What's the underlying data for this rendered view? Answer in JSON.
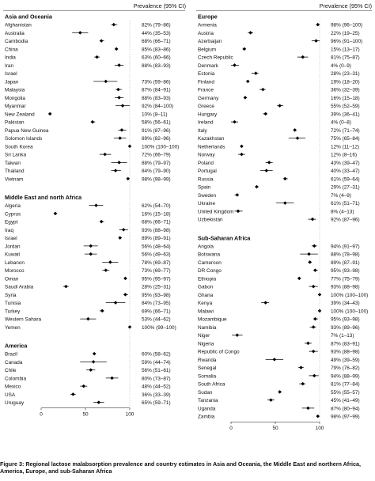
{
  "chart_data": {
    "type": "forest",
    "column_header": "Prevalence (95% CI)",
    "xlim": [
      0,
      100
    ],
    "x_ticks": [
      0,
      50,
      100
    ],
    "panels": [
      {
        "groups": [
          {
            "name": "Asia and Oceania",
            "rows": [
              {
                "country": "Afghanistan",
                "label": "82% (79–86)",
                "est": 82,
                "lo": 79,
                "hi": 86
              },
              {
                "country": "Australia",
                "label": "44% (35–53)",
                "est": 44,
                "lo": 35,
                "hi": 53
              },
              {
                "country": "Cambodia",
                "label": "68% (66–71)",
                "est": 68,
                "lo": 66,
                "hi": 71
              },
              {
                "country": "China",
                "label": "85% (83–86)",
                "est": 85,
                "lo": 83,
                "hi": 86
              },
              {
                "country": "India",
                "label": "63% (60–66)",
                "est": 63,
                "lo": 60,
                "hi": 66
              },
              {
                "country": "Iran",
                "label": "88% (83–93)",
                "est": 88,
                "lo": 83,
                "hi": 93
              },
              {
                "country": "Israel",
                "label": "",
                "est": null,
                "lo": null,
                "hi": null
              },
              {
                "country": "Japan",
                "label": "73% (59–86)",
                "est": 73,
                "lo": 59,
                "hi": 86
              },
              {
                "country": "Malaysia",
                "label": "87% (84–91)",
                "est": 87,
                "lo": 84,
                "hi": 91
              },
              {
                "country": "Mongolia",
                "label": "88% (83–93)",
                "est": 88,
                "lo": 83,
                "hi": 93
              },
              {
                "country": "Myanmar",
                "label": "92% (84–100)",
                "est": 92,
                "lo": 84,
                "hi": 100
              },
              {
                "country": "New Zealand",
                "label": "10% (8–11)",
                "est": 10,
                "lo": 8,
                "hi": 11
              },
              {
                "country": "Pakistan",
                "label": "58% (56–61)",
                "est": 58,
                "lo": 56,
                "hi": 61
              },
              {
                "country": "Papua New Guinea",
                "label": "91% (87–96)",
                "est": 91,
                "lo": 87,
                "hi": 96
              },
              {
                "country": "Solomon Islands",
                "label": "89% (82–96)",
                "est": 89,
                "lo": 82,
                "hi": 96
              },
              {
                "country": "South Korea",
                "label": "100% (100–100)",
                "est": 100,
                "lo": 100,
                "hi": 100
              },
              {
                "country": "Sri Lanka",
                "label": "72% (66–79)",
                "est": 72,
                "lo": 66,
                "hi": 79
              },
              {
                "country": "Taiwan",
                "label": "88% (79–97)",
                "est": 88,
                "lo": 79,
                "hi": 97
              },
              {
                "country": "Thailand",
                "label": "84% (79–90)",
                "est": 84,
                "lo": 79,
                "hi": 90
              },
              {
                "country": "Vietnam",
                "label": "98% (98–99)",
                "est": 98,
                "lo": 98,
                "hi": 99
              }
            ]
          },
          {
            "name": "Middle East and north Africa",
            "rows": [
              {
                "country": "Algeria",
                "label": "62% (54–70)",
                "est": 62,
                "lo": 54,
                "hi": 70
              },
              {
                "country": "Cyprus",
                "label": "16% (15–18)",
                "est": 16,
                "lo": 15,
                "hi": 18
              },
              {
                "country": "Egypt",
                "label": "68% (66–71)",
                "est": 68,
                "lo": 66,
                "hi": 71
              },
              {
                "country": "Iraq",
                "label": "93% (88–98)",
                "est": 93,
                "lo": 88,
                "hi": 98
              },
              {
                "country": "Israel",
                "label": "89% (89–91)",
                "est": 89,
                "lo": 89,
                "hi": 91
              },
              {
                "country": "Jordan",
                "label": "56% (48–64)",
                "est": 56,
                "lo": 48,
                "hi": 64
              },
              {
                "country": "Kuwait",
                "label": "56% (49–63)",
                "est": 56,
                "lo": 49,
                "hi": 63
              },
              {
                "country": "Lebanon",
                "label": "78% (69–87)",
                "est": 78,
                "lo": 69,
                "hi": 87
              },
              {
                "country": "Morocco",
                "label": "73% (69–77)",
                "est": 73,
                "lo": 69,
                "hi": 77
              },
              {
                "country": "Oman",
                "label": "95% (95–97)",
                "est": 95,
                "lo": 95,
                "hi": 97
              },
              {
                "country": "Saudi Arabia",
                "label": "28% (25–31)",
                "est": 28,
                "lo": 25,
                "hi": 31
              },
              {
                "country": "Syria",
                "label": "95% (93–98)",
                "est": 95,
                "lo": 93,
                "hi": 98
              },
              {
                "country": "Tunisia",
                "label": "84% (73–95)",
                "est": 84,
                "lo": 73,
                "hi": 95
              },
              {
                "country": "Turkey",
                "label": "69% (66–71)",
                "est": 69,
                "lo": 66,
                "hi": 71
              },
              {
                "country": "Western Sahara",
                "label": "53% (44–62)",
                "est": 53,
                "lo": 44,
                "hi": 62
              },
              {
                "country": "Yemen",
                "label": "100% (99–100)",
                "est": 100,
                "lo": 99,
                "hi": 100
              }
            ]
          },
          {
            "name": "America",
            "rows": [
              {
                "country": "Brazil",
                "label": "60% (58–62)",
                "est": 60,
                "lo": 58,
                "hi": 62
              },
              {
                "country": "Canada",
                "label": "59% (44–74)",
                "est": 59,
                "lo": 44,
                "hi": 74
              },
              {
                "country": "Chile",
                "label": "56% (51–61)",
                "est": 56,
                "lo": 51,
                "hi": 61
              },
              {
                "country": "Colombia",
                "label": "80% (73–87)",
                "est": 80,
                "lo": 73,
                "hi": 87
              },
              {
                "country": "Mexico",
                "label": "48% (44–52)",
                "est": 48,
                "lo": 44,
                "hi": 52
              },
              {
                "country": "USA",
                "label": "36% (33–39)",
                "est": 36,
                "lo": 33,
                "hi": 39
              },
              {
                "country": "Uruguay",
                "label": "65% (59–71)",
                "est": 65,
                "lo": 59,
                "hi": 71
              }
            ]
          }
        ]
      },
      {
        "groups": [
          {
            "name": "Europe",
            "rows": [
              {
                "country": "Armenia",
                "label": "98% (96–100)",
                "est": 98,
                "lo": 96,
                "hi": 100
              },
              {
                "country": "Austria",
                "label": "22% (19–25)",
                "est": 22,
                "lo": 19,
                "hi": 25
              },
              {
                "country": "Azerbaijan",
                "label": "96% (91–100)",
                "est": 96,
                "lo": 91,
                "hi": 100
              },
              {
                "country": "Belgium",
                "label": "15% (13–17)",
                "est": 15,
                "lo": 13,
                "hi": 17
              },
              {
                "country": "Czech Republic",
                "label": "81% (75–87)",
                "est": 81,
                "lo": 75,
                "hi": 87
              },
              {
                "country": "Denmark",
                "label": "4% (0–9)",
                "est": 4,
                "lo": 0,
                "hi": 9
              },
              {
                "country": "Estonia",
                "label": "28% (23–31)",
                "est": 28,
                "lo": 23,
                "hi": 31
              },
              {
                "country": "Finland",
                "label": "19% (18–20)",
                "est": 19,
                "lo": 18,
                "hi": 20
              },
              {
                "country": "France",
                "label": "36% (32–39)",
                "est": 36,
                "lo": 32,
                "hi": 39
              },
              {
                "country": "Germany",
                "label": "16% (15–18)",
                "est": 16,
                "lo": 15,
                "hi": 18
              },
              {
                "country": "Greece",
                "label": "55% (52–59)",
                "est": 55,
                "lo": 52,
                "hi": 59
              },
              {
                "country": "Hungary",
                "label": "39% (36–41)",
                "est": 39,
                "lo": 36,
                "hi": 41
              },
              {
                "country": "Ireland",
                "label": "4% (0–8)",
                "est": 4,
                "lo": 0,
                "hi": 8
              },
              {
                "country": "Italy",
                "label": "72% (71–74)",
                "est": 72,
                "lo": 71,
                "hi": 74
              },
              {
                "country": "Kazakhstan",
                "label": "75% (65–84)",
                "est": 75,
                "lo": 65,
                "hi": 84
              },
              {
                "country": "Netherlands",
                "label": "12% (11–12)",
                "est": 12,
                "lo": 11,
                "hi": 12
              },
              {
                "country": "Norway",
                "label": "12% (8–16)",
                "est": 12,
                "lo": 8,
                "hi": 16
              },
              {
                "country": "Poland",
                "label": "43% (39–47)",
                "est": 43,
                "lo": 39,
                "hi": 47
              },
              {
                "country": "Portugal",
                "label": "40% (33–47)",
                "est": 40,
                "lo": 33,
                "hi": 47
              },
              {
                "country": "Russia",
                "label": "61% (59–64)",
                "est": 61,
                "lo": 59,
                "hi": 64
              },
              {
                "country": "Spain",
                "label": "29% (27–31)",
                "est": 29,
                "lo": 27,
                "hi": 31
              },
              {
                "country": "Sweden",
                "label": "7% (4–9)",
                "est": 7,
                "lo": 4,
                "hi": 9
              },
              {
                "country": "Ukraine",
                "label": "61% (51–71)",
                "est": 61,
                "lo": 51,
                "hi": 71
              },
              {
                "country": "United Kingdom",
                "label": "8% (4–13)",
                "est": 8,
                "lo": 4,
                "hi": 13
              },
              {
                "country": "Uzbekistan",
                "label": "92% (87–96)",
                "est": 92,
                "lo": 87,
                "hi": 96
              }
            ]
          },
          {
            "name": "Sub-Saharan Africa",
            "rows": [
              {
                "country": "Angola",
                "label": "94% (91–97)",
                "est": 94,
                "lo": 91,
                "hi": 97
              },
              {
                "country": "Botswana",
                "label": "88% (78–98)",
                "est": 88,
                "lo": 78,
                "hi": 98
              },
              {
                "country": "Cameroon",
                "label": "89% (87–91)",
                "est": 89,
                "lo": 87,
                "hi": 91
              },
              {
                "country": "DR Congo",
                "label": "95% (93–98)",
                "est": 95,
                "lo": 93,
                "hi": 98
              },
              {
                "country": "Ethiopia",
                "label": "77% (75–79)",
                "est": 77,
                "lo": 75,
                "hi": 79
              },
              {
                "country": "Gabon",
                "label": "93% (88–98)",
                "est": 93,
                "lo": 88,
                "hi": 98
              },
              {
                "country": "Ghana",
                "label": "100% (100–100)",
                "est": 100,
                "lo": 100,
                "hi": 100
              },
              {
                "country": "Kenya",
                "label": "39% (34–43)",
                "est": 39,
                "lo": 34,
                "hi": 43
              },
              {
                "country": "Malawi",
                "label": "100% (100–100)",
                "est": 100,
                "lo": 100,
                "hi": 100
              },
              {
                "country": "Mozambique",
                "label": "95% (93–98)",
                "est": 95,
                "lo": 93,
                "hi": 98
              },
              {
                "country": "Namibia",
                "label": "93% (89–96)",
                "est": 93,
                "lo": 89,
                "hi": 96
              },
              {
                "country": "Niger",
                "label": "7% (1–13)",
                "est": 7,
                "lo": 1,
                "hi": 13
              },
              {
                "country": "Nigeria",
                "label": "87% (83–91)",
                "est": 87,
                "lo": 83,
                "hi": 91
              },
              {
                "country": "Republic of Congo",
                "label": "93% (88–98)",
                "est": 93,
                "lo": 88,
                "hi": 98
              },
              {
                "country": "Rwanda",
                "label": "49% (39–59)",
                "est": 49,
                "lo": 39,
                "hi": 59
              },
              {
                "country": "Senegal",
                "label": "79% (76–82)",
                "est": 79,
                "lo": 76,
                "hi": 82
              },
              {
                "country": "Somalia",
                "label": "94% (88–99)",
                "est": 94,
                "lo": 88,
                "hi": 99
              },
              {
                "country": "South Africa",
                "label": "81% (77–84)",
                "est": 81,
                "lo": 77,
                "hi": 84
              },
              {
                "country": "Sudan",
                "label": "55% (55–57)",
                "est": 55,
                "lo": 55,
                "hi": 57
              },
              {
                "country": "Tanzania",
                "label": "45% (41–49)",
                "est": 45,
                "lo": 41,
                "hi": 49
              },
              {
                "country": "Uganda",
                "label": "87% (80–94)",
                "est": 87,
                "lo": 80,
                "hi": 94
              },
              {
                "country": "Zambia",
                "label": "98% (97–99)",
                "est": 98,
                "lo": 97,
                "hi": 99
              }
            ]
          }
        ]
      }
    ]
  },
  "caption": "Figure 3: Regional lactose malabsorption prevalence and country estimates in Asia and Oceania, the Middle East and northern Africa, America, Europe, and sub-Saharan Africa"
}
